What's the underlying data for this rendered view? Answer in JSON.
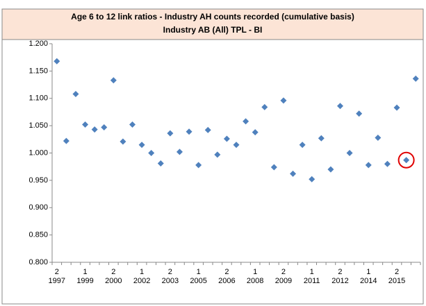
{
  "chart_data": {
    "type": "scatter",
    "title": "Age 6 to 12 link ratios - Industry AH counts recorded (cumulative basis)",
    "subtitle": "Industry AB (All) TPL - BI",
    "categories": [
      "2",
      null,
      null,
      "1",
      null,
      null,
      "2",
      null,
      null,
      "1",
      null,
      null,
      "2",
      null,
      null,
      "1",
      null,
      null,
      "2",
      null,
      null,
      "1",
      null,
      null,
      "2",
      null,
      null,
      "1",
      null,
      null,
      "2",
      null,
      null,
      "1",
      null,
      null,
      "2",
      null,
      null
    ],
    "category_years": [
      "1997",
      null,
      null,
      "1999",
      null,
      null,
      "2000",
      null,
      null,
      "2002",
      null,
      null,
      "2003",
      null,
      null,
      "2005",
      null,
      null,
      "2006",
      null,
      null,
      "2008",
      null,
      null,
      "2009",
      null,
      null,
      "2011",
      null,
      null,
      "2012",
      null,
      null,
      "2014",
      null,
      null,
      "2015",
      null,
      null
    ],
    "values": [
      1.168,
      1.022,
      1.108,
      1.052,
      1.043,
      1.047,
      1.133,
      1.021,
      1.052,
      1.015,
      1.0,
      0.981,
      1.036,
      1.002,
      1.039,
      0.978,
      1.042,
      0.997,
      1.026,
      1.015,
      1.058,
      1.038,
      1.084,
      0.974,
      1.096,
      0.962,
      1.015,
      0.952,
      1.027,
      0.97,
      1.086,
      1.0,
      1.072,
      0.978,
      1.028,
      0.98,
      1.083,
      0.987,
      1.136
    ],
    "color": "#4f81bd",
    "highlight_index": 37,
    "highlight_color": "#e00000",
    "ylim": [
      0.8,
      1.2
    ],
    "yticks": [
      {
        "value": 0.8,
        "label": "0.800"
      },
      {
        "value": 0.85,
        "label": "0.850"
      },
      {
        "value": 0.9,
        "label": "0.900"
      },
      {
        "value": 0.95,
        "label": "0.950"
      },
      {
        "value": 1.0,
        "label": "1.000"
      },
      {
        "value": 1.05,
        "label": "1.050"
      },
      {
        "value": 1.1,
        "label": "1.100"
      },
      {
        "value": 1.15,
        "label": "1.150"
      },
      {
        "value": 1.2,
        "label": "1.200"
      }
    ],
    "grid": false
  }
}
